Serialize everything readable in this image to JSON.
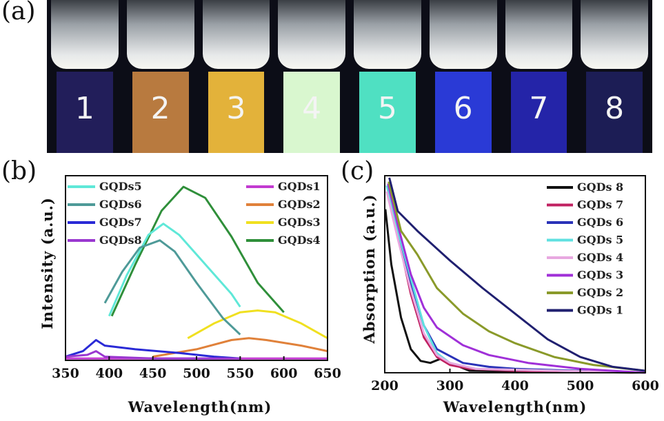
{
  "panels": {
    "a": "(a)",
    "b": "(b)",
    "c": "(c)"
  },
  "photo": {
    "vials": [
      {
        "label": "1",
        "color": "#221e5a"
      },
      {
        "label": "2",
        "color": "#b87a3f"
      },
      {
        "label": "3",
        "color": "#e3b23a"
      },
      {
        "label": "4",
        "color": "#d9f7cf"
      },
      {
        "label": "5",
        "color": "#4fe0c2"
      },
      {
        "label": "6",
        "color": "#2a3ad6"
      },
      {
        "label": "7",
        "color": "#2424a8"
      },
      {
        "label": "8",
        "color": "#1c1d55"
      }
    ]
  },
  "chart_data": [
    {
      "panel": "b",
      "type": "line",
      "xlabel": "Wavelength(nm)",
      "ylabel": "Intensity (a.u.)",
      "xlim": [
        350,
        650
      ],
      "ylim": [
        0,
        1
      ],
      "xticks": [
        "350",
        "400",
        "450",
        "500",
        "550",
        "600",
        "650"
      ],
      "legend_left": [
        "GQDs5",
        "GQDs6",
        "GQDs7",
        "GQDs8"
      ],
      "legend_right": [
        "GQDs1",
        "GQDs2",
        "GQDs3",
        "GQDs4"
      ],
      "series": [
        {
          "name": "GQDs1",
          "color": "#c23ad0",
          "x": [
            350,
            380,
            450,
            550,
            650
          ],
          "y": [
            0.01,
            0.01,
            0.01,
            0.01,
            0.01
          ]
        },
        {
          "name": "GQDs2",
          "color": "#e0813a",
          "x": [
            450,
            500,
            540,
            560,
            580,
            620,
            650
          ],
          "y": [
            0.02,
            0.06,
            0.11,
            0.12,
            0.11,
            0.08,
            0.05
          ]
        },
        {
          "name": "GQDs3",
          "color": "#f0e020",
          "x": [
            490,
            520,
            550,
            570,
            590,
            620,
            650
          ],
          "y": [
            0.12,
            0.2,
            0.26,
            0.27,
            0.26,
            0.2,
            0.12
          ]
        },
        {
          "name": "GQDs4",
          "color": "#2f8f3a",
          "x": [
            403,
            430,
            460,
            485,
            510,
            540,
            570,
            600
          ],
          "y": [
            0.24,
            0.52,
            0.81,
            0.94,
            0.88,
            0.67,
            0.42,
            0.26
          ]
        },
        {
          "name": "GQDs5",
          "color": "#5fe8d8",
          "x": [
            400,
            420,
            445,
            462,
            480,
            510,
            540,
            550
          ],
          "y": [
            0.24,
            0.46,
            0.68,
            0.74,
            0.68,
            0.52,
            0.36,
            0.29
          ]
        },
        {
          "name": "GQDs6",
          "color": "#4e9a98",
          "x": [
            395,
            415,
            435,
            458,
            475,
            500,
            530,
            550
          ],
          "y": [
            0.31,
            0.48,
            0.61,
            0.65,
            0.59,
            0.42,
            0.23,
            0.14
          ]
        },
        {
          "name": "GQDs7",
          "color": "#2a2ad6",
          "x": [
            350,
            370,
            385,
            395,
            430,
            480,
            520,
            550
          ],
          "y": [
            0.02,
            0.05,
            0.11,
            0.08,
            0.06,
            0.04,
            0.02,
            0.01
          ]
        },
        {
          "name": "GQDs8",
          "color": "#9a38d0",
          "x": [
            350,
            375,
            385,
            395,
            450,
            550
          ],
          "y": [
            0.02,
            0.03,
            0.05,
            0.02,
            0.01,
            0.01
          ]
        }
      ]
    },
    {
      "panel": "c",
      "type": "line",
      "xlabel": "Wavelength(nm)",
      "ylabel": "Absorption (a.u.)",
      "xlim": [
        200,
        600
      ],
      "ylim": [
        0,
        1
      ],
      "xticks": [
        "200",
        "300",
        "400",
        "500",
        "600"
      ],
      "legend": [
        "GQDs 8",
        "GQDs 7",
        "GQDs 6",
        "GQDs 5",
        "GQDs 4",
        "GQDs 3",
        "GQDs 2",
        "GQDs 1"
      ],
      "series": [
        {
          "name": "GQDs 8",
          "color": "#111111",
          "x": [
            201,
            210,
            225,
            240,
            255,
            270,
            285,
            300,
            330,
            600
          ],
          "y": [
            0.83,
            0.55,
            0.28,
            0.12,
            0.06,
            0.05,
            0.07,
            0.05,
            0.01,
            0.0
          ]
        },
        {
          "name": "GQDs 7",
          "color": "#c02060",
          "x": [
            204,
            220,
            240,
            260,
            280,
            300,
            330,
            400,
            600
          ],
          "y": [
            0.95,
            0.7,
            0.4,
            0.18,
            0.08,
            0.04,
            0.02,
            0.01,
            0.0
          ]
        },
        {
          "name": "GQDs 6",
          "color": "#2a32b8",
          "x": [
            204,
            220,
            240,
            260,
            280,
            320,
            360,
            400,
            600
          ],
          "y": [
            0.95,
            0.72,
            0.46,
            0.24,
            0.12,
            0.05,
            0.03,
            0.02,
            0.0
          ]
        },
        {
          "name": "GQDs 5",
          "color": "#5fe0e0",
          "x": [
            203,
            220,
            240,
            260,
            280,
            300,
            340,
            600
          ],
          "y": [
            0.95,
            0.72,
            0.48,
            0.24,
            0.1,
            0.05,
            0.02,
            0.0
          ]
        },
        {
          "name": "GQDs 4",
          "color": "#e8a8e0",
          "x": [
            203,
            220,
            240,
            260,
            280,
            300,
            340,
            600
          ],
          "y": [
            0.92,
            0.68,
            0.42,
            0.2,
            0.09,
            0.05,
            0.02,
            0.0
          ]
        },
        {
          "name": "GQDs 3",
          "color": "#a030d8",
          "x": [
            205,
            220,
            240,
            260,
            280,
            320,
            360,
            420,
            500,
            600
          ],
          "y": [
            0.96,
            0.75,
            0.5,
            0.33,
            0.23,
            0.14,
            0.09,
            0.05,
            0.02,
            0.0
          ]
        },
        {
          "name": "GQDs 2",
          "color": "#8a9a2a",
          "x": [
            206,
            225,
            250,
            280,
            320,
            360,
            400,
            460,
            520,
            600
          ],
          "y": [
            0.97,
            0.72,
            0.6,
            0.43,
            0.3,
            0.21,
            0.15,
            0.08,
            0.04,
            0.01
          ]
        },
        {
          "name": "GQDs 1",
          "color": "#202070",
          "x": [
            207,
            220,
            250,
            300,
            350,
            400,
            450,
            500,
            550,
            600
          ],
          "y": [
            0.99,
            0.82,
            0.72,
            0.57,
            0.43,
            0.3,
            0.17,
            0.08,
            0.03,
            0.01
          ]
        }
      ]
    }
  ]
}
